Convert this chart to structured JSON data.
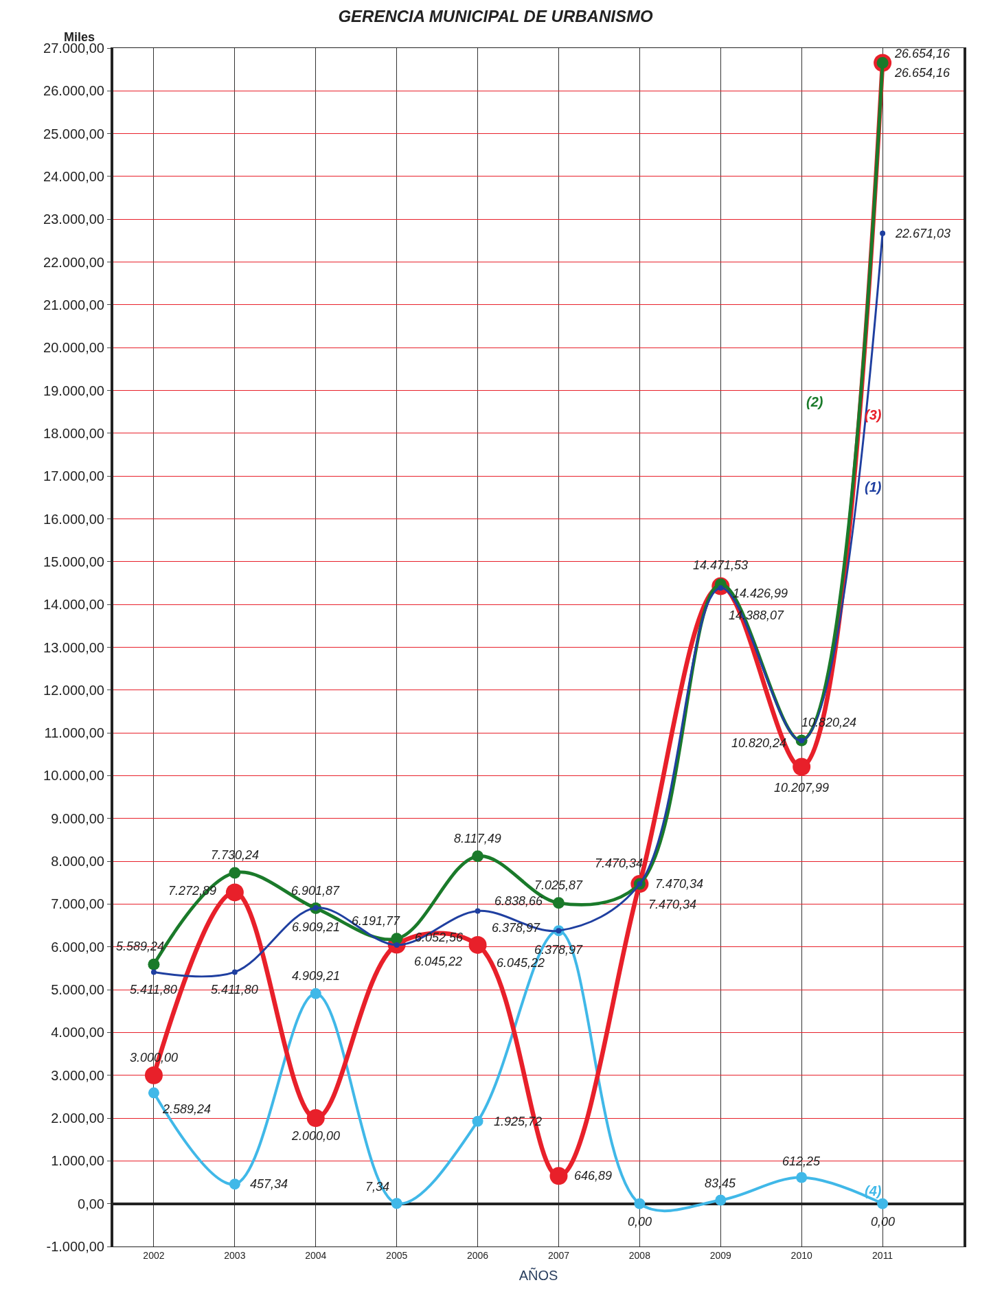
{
  "chart_data": {
    "type": "line",
    "title": "GERENCIA MUNICIPAL DE URBANISMO",
    "ylabel": "Miles",
    "xlabel": "AÑOS",
    "categories": [
      "2002",
      "2003",
      "2004",
      "2005",
      "2006",
      "2007",
      "2008",
      "2009",
      "2010",
      "2011"
    ],
    "series": [
      {
        "name": "(1)",
        "color": "#1f3fa0",
        "values": [
          5411.8,
          5411.8,
          6909.21,
          6045.22,
          6838.66,
          6378.97,
          7470.34,
          14388.07,
          10820.24,
          22671.03
        ],
        "value_labels": [
          "5.411,80",
          "5.411,80",
          "6.909,21",
          "6.045,22",
          "6.838,66",
          "6.378,97",
          "7.470,34",
          "14.388,07",
          "10.820,24",
          "22.671,03"
        ]
      },
      {
        "name": "(2)",
        "color": "#1a7a2a",
        "values": [
          5589.24,
          7730.24,
          6901.87,
          6191.77,
          8117.49,
          7025.87,
          7470.34,
          14471.53,
          10820.24,
          26654.16
        ],
        "value_labels": [
          "5.589,24",
          "7.730,24",
          "6.901,87",
          "6.191,77",
          "8.117,49",
          "7.025,87",
          "7.470,34",
          "14.471,53",
          "10.820,24",
          "26.654,16"
        ]
      },
      {
        "name": "(3)",
        "color": "#e8202a",
        "values": [
          3000.0,
          7272.89,
          2000.0,
          6052.56,
          6045.22,
          646.89,
          7470.34,
          14426.99,
          10207.99,
          26654.16
        ],
        "value_labels": [
          "3.000,00",
          "7.272,89",
          "2.000,00",
          "6.052,56",
          "6.045,22",
          "646,89",
          "7.470,34",
          "14.426,99",
          "10.207,99",
          "26.654,16"
        ]
      },
      {
        "name": "(4)",
        "color": "#40b8e8",
        "values": [
          2589.24,
          457.34,
          4909.21,
          7.34,
          1925.72,
          6378.97,
          0.0,
          83.45,
          612.25,
          0.0
        ],
        "value_labels": [
          "2.589,24",
          "457,34",
          "4.909,21",
          "7,34",
          "1.925,72",
          "6.378,97",
          "0,00",
          "83,45",
          "612,25",
          "0,00"
        ]
      }
    ],
    "ylim": [
      -1000,
      27000
    ],
    "yticks": [
      {
        "value": -1000,
        "label": "-1.000,00"
      },
      {
        "value": 0,
        "label": "0,00"
      },
      {
        "value": 1000,
        "label": "1.000,00"
      },
      {
        "value": 2000,
        "label": "2.000,00"
      },
      {
        "value": 3000,
        "label": "3.000,00"
      },
      {
        "value": 4000,
        "label": "4.000,00"
      },
      {
        "value": 5000,
        "label": "5.000,00"
      },
      {
        "value": 6000,
        "label": "6.000,00"
      },
      {
        "value": 7000,
        "label": "7.000,00"
      },
      {
        "value": 8000,
        "label": "8.000,00"
      },
      {
        "value": 9000,
        "label": "9.000,00"
      },
      {
        "value": 10000,
        "label": "10.000,00"
      },
      {
        "value": 11000,
        "label": "11.000,00"
      },
      {
        "value": 12000,
        "label": "12.000,00"
      },
      {
        "value": 13000,
        "label": "13.000,00"
      },
      {
        "value": 14000,
        "label": "14.000,00"
      },
      {
        "value": 15000,
        "label": "15.000,00"
      },
      {
        "value": 16000,
        "label": "16.000,00"
      },
      {
        "value": 17000,
        "label": "17.000,00"
      },
      {
        "value": 18000,
        "label": "18.000,00"
      },
      {
        "value": 19000,
        "label": "19.000,00"
      },
      {
        "value": 20000,
        "label": "20.000,00"
      },
      {
        "value": 21000,
        "label": "21.000,00"
      },
      {
        "value": 22000,
        "label": "22.000,00"
      },
      {
        "value": 23000,
        "label": "23.000,00"
      },
      {
        "value": 24000,
        "label": "24.000,00"
      },
      {
        "value": 25000,
        "label": "25.000,00"
      },
      {
        "value": 26000,
        "label": "26.000,00"
      },
      {
        "value": 27000,
        "label": "27.000,00"
      }
    ],
    "grid": true,
    "marker": "circle",
    "line_style": "solid"
  }
}
